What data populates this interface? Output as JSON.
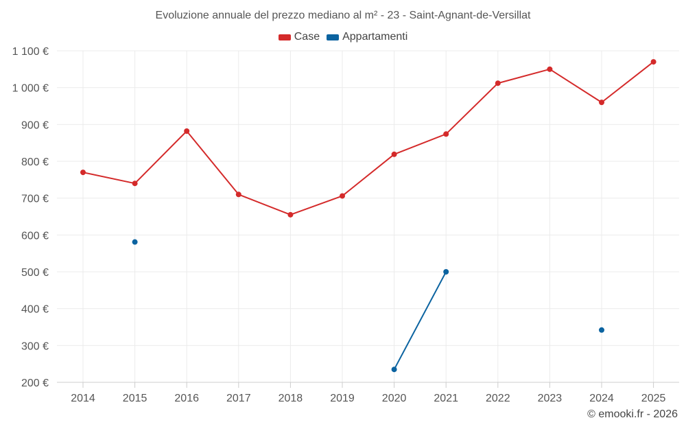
{
  "chart_data": {
    "type": "line",
    "title": "Evoluzione annuale del prezzo mediano al m² - 23 - Saint-Agnant-de-Versillat",
    "xlabel": "",
    "ylabel": "",
    "categories": [
      "2014",
      "2015",
      "2016",
      "2017",
      "2018",
      "2019",
      "2020",
      "2021",
      "2022",
      "2023",
      "2024",
      "2025"
    ],
    "ylim": [
      200,
      1100
    ],
    "yticks": [
      200,
      300,
      400,
      500,
      600,
      700,
      800,
      900,
      1000,
      1100
    ],
    "ytick_labels": [
      "200 €",
      "300 €",
      "400 €",
      "500 €",
      "600 €",
      "700 €",
      "800 €",
      "900 €",
      "1 000 €",
      "1 100 €"
    ],
    "series": [
      {
        "name": "Case",
        "color": "#d42a2a",
        "values": [
          770,
          740,
          882,
          710,
          655,
          706,
          819,
          874,
          1012,
          1050,
          960,
          1070
        ]
      },
      {
        "name": "Appartamenti",
        "color": "#0b63a0",
        "values": [
          null,
          581,
          null,
          null,
          null,
          null,
          235,
          500,
          null,
          null,
          342,
          null
        ]
      }
    ],
    "grid": true,
    "legend_position": "top-center"
  },
  "credit": "© emooki.fr - 2026"
}
